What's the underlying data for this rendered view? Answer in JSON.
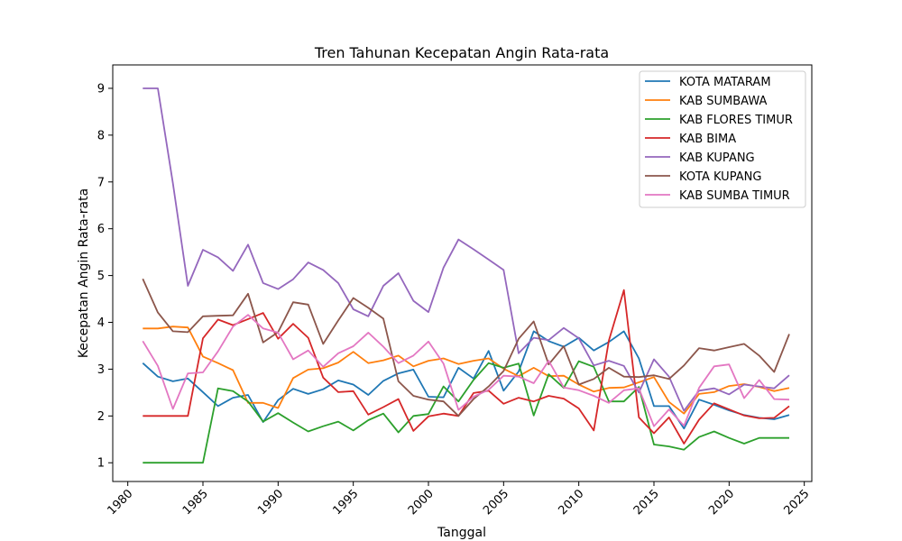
{
  "chart_data": {
    "type": "line",
    "title": "Tren Tahunan Kecepatan Angin Rata-rata",
    "xlabel": "Tanggal",
    "ylabel": "Kecepatan Angin Rata-rata",
    "xlim": [
      1979,
      2025.5
    ],
    "ylim": [
      0.6,
      9.5
    ],
    "xticks": [
      1980,
      1985,
      1990,
      1995,
      2000,
      2005,
      2010,
      2015,
      2020,
      2025
    ],
    "yticks": [
      1,
      2,
      3,
      4,
      5,
      6,
      7,
      8,
      9
    ],
    "grid": false,
    "legend_position": "top-right",
    "x": [
      1981,
      1982,
      1983,
      1984,
      1985,
      1986,
      1987,
      1988,
      1989,
      1990,
      1991,
      1992,
      1993,
      1994,
      1995,
      1996,
      1997,
      1998,
      1999,
      2000,
      2001,
      2002,
      2003,
      2004,
      2005,
      2006,
      2007,
      2008,
      2009,
      2010,
      2011,
      2012,
      2013,
      2014,
      2015,
      2016,
      2017,
      2018,
      2019,
      2020,
      2021,
      2022,
      2023,
      2024
    ],
    "series": [
      {
        "name": "KOTA MATARAM",
        "color": "#1f77b4",
        "values": [
          3.13,
          2.84,
          2.74,
          2.8,
          2.51,
          2.21,
          2.39,
          2.45,
          1.87,
          2.34,
          2.58,
          2.47,
          2.57,
          2.76,
          2.67,
          2.45,
          2.75,
          2.91,
          2.99,
          2.41,
          2.4,
          3.03,
          2.8,
          3.39,
          2.54,
          2.95,
          3.81,
          3.6,
          3.48,
          3.67,
          3.4,
          3.58,
          3.81,
          3.23,
          2.21,
          2.21,
          1.73,
          2.35,
          2.24,
          2.12,
          2.02,
          1.96,
          1.93,
          2.02
        ]
      },
      {
        "name": "KAB SUMBAWA",
        "color": "#ff7f0e",
        "values": [
          3.87,
          3.87,
          3.91,
          3.89,
          3.27,
          3.13,
          2.98,
          2.28,
          2.28,
          2.17,
          2.81,
          2.99,
          3.02,
          3.14,
          3.37,
          3.13,
          3.19,
          3.29,
          3.06,
          3.18,
          3.23,
          3.11,
          3.18,
          3.23,
          3.01,
          2.85,
          3.03,
          2.85,
          2.86,
          2.67,
          2.52,
          2.6,
          2.61,
          2.72,
          2.83,
          2.3,
          2.05,
          2.47,
          2.51,
          2.64,
          2.68,
          2.62,
          2.53,
          2.6
        ]
      },
      {
        "name": "KAB FLORES TIMUR",
        "color": "#2ca02c",
        "values": [
          1.0,
          1.0,
          1.0,
          1.0,
          1.0,
          2.59,
          2.53,
          2.31,
          1.88,
          2.06,
          1.86,
          1.67,
          1.78,
          1.88,
          1.69,
          1.91,
          2.05,
          1.65,
          2.0,
          2.04,
          2.63,
          2.31,
          2.77,
          3.13,
          3.03,
          3.12,
          2.01,
          2.89,
          2.6,
          3.17,
          3.05,
          2.31,
          2.31,
          2.62,
          1.39,
          1.35,
          1.28,
          1.55,
          1.67,
          1.53,
          1.41,
          1.53,
          1.53,
          1.53
        ]
      },
      {
        "name": "KAB BIMA",
        "color": "#d62728",
        "values": [
          2.0,
          2.0,
          2.0,
          2.0,
          3.66,
          4.06,
          3.94,
          4.07,
          4.2,
          3.65,
          3.97,
          3.67,
          2.82,
          2.51,
          2.53,
          2.03,
          2.19,
          2.36,
          1.68,
          1.99,
          2.05,
          2.0,
          2.49,
          2.54,
          2.26,
          2.39,
          2.31,
          2.43,
          2.37,
          2.16,
          1.69,
          3.61,
          4.69,
          1.97,
          1.63,
          1.97,
          1.41,
          1.92,
          2.27,
          2.14,
          2.01,
          1.95,
          1.96,
          2.21
        ]
      },
      {
        "name": "KAB KUPANG",
        "color": "#9467bd",
        "values": [
          9.0,
          9.0,
          6.97,
          4.78,
          5.55,
          5.39,
          5.1,
          5.66,
          4.84,
          4.71,
          4.92,
          5.28,
          5.12,
          4.84,
          4.28,
          4.13,
          4.78,
          5.05,
          4.46,
          4.22,
          5.17,
          5.77,
          5.56,
          5.34,
          5.12,
          3.34,
          3.67,
          3.62,
          3.88,
          3.66,
          3.08,
          3.18,
          3.07,
          2.5,
          3.21,
          2.84,
          2.11,
          2.54,
          2.59,
          2.46,
          2.67,
          2.63,
          2.59,
          2.87
        ]
      },
      {
        "name": "KOTA KUPANG",
        "color": "#8c564b",
        "values": [
          4.93,
          4.21,
          3.81,
          3.79,
          4.13,
          4.14,
          4.15,
          4.61,
          3.57,
          3.79,
          4.43,
          4.38,
          3.54,
          4.04,
          4.52,
          4.31,
          4.08,
          2.74,
          2.43,
          2.35,
          2.31,
          2.0,
          2.36,
          2.63,
          2.96,
          3.65,
          4.02,
          3.1,
          3.49,
          2.67,
          2.79,
          3.03,
          2.84,
          2.83,
          2.87,
          2.79,
          3.08,
          3.45,
          3.4,
          3.47,
          3.54,
          3.29,
          2.94,
          3.75
        ]
      },
      {
        "name": "KAB SUMBA TIMUR",
        "color": "#e377c2",
        "values": [
          3.6,
          3.07,
          2.15,
          2.91,
          2.93,
          3.38,
          3.91,
          4.16,
          3.87,
          3.78,
          3.21,
          3.4,
          3.05,
          3.34,
          3.49,
          3.78,
          3.48,
          3.13,
          3.29,
          3.59,
          3.12,
          2.13,
          2.41,
          2.56,
          2.86,
          2.84,
          2.7,
          3.18,
          2.61,
          2.55,
          2.43,
          2.28,
          2.55,
          2.59,
          1.78,
          2.14,
          1.79,
          2.6,
          3.06,
          3.1,
          2.38,
          2.77,
          2.36,
          2.35
        ]
      }
    ]
  }
}
